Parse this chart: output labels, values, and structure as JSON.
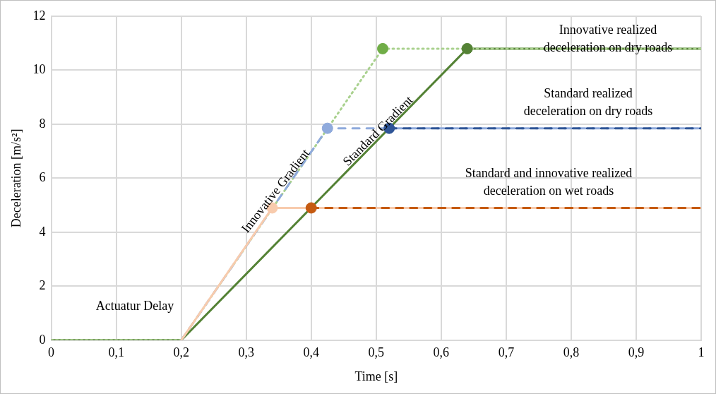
{
  "chart_data": {
    "type": "line",
    "xlabel": "Time [s]",
    "ylabel": "Deceleration [m/s²]",
    "xlim": [
      0,
      1
    ],
    "xticks": [
      0,
      {
        "value": 0.1,
        "label": "0,1"
      },
      {
        "value": 0.2,
        "label": "0,2"
      },
      {
        "value": 0.3,
        "label": "0,3"
      },
      {
        "value": 0.4,
        "label": "0,4"
      },
      {
        "value": 0.5,
        "label": "0,5"
      },
      {
        "value": 0.6,
        "label": "0,6"
      },
      {
        "value": 0.7,
        "label": "0,7"
      },
      {
        "value": 0.8,
        "label": "0,8"
      },
      {
        "value": 0.9,
        "label": "0,9"
      },
      1
    ],
    "ylim": [
      0,
      12
    ],
    "yticks": [
      0,
      2,
      4,
      6,
      8,
      10,
      12
    ],
    "grid": true,
    "legend": false,
    "series": [
      {
        "color": "#548235",
        "line_style": "solid",
        "marker": "none",
        "x": [
          0,
          0.2,
          0.64,
          1
        ],
        "values": [
          0,
          0,
          10.8,
          10.8
        ]
      },
      {
        "color": "#a9d18e",
        "line_style": "dotted",
        "marker": "none",
        "x": [
          0,
          0.2,
          0.51,
          1
        ],
        "values": [
          0,
          0,
          10.8,
          10.8
        ]
      },
      {
        "color": "#8faadc",
        "line_style": "dashed",
        "marker": "none",
        "x": [
          0.2,
          0.425,
          1
        ],
        "values": [
          0,
          7.85,
          7.85
        ]
      },
      {
        "color": "#2f5597",
        "line_style": "dashed",
        "marker": "none",
        "x": [
          0.52,
          1
        ],
        "values": [
          7.85,
          7.85
        ]
      },
      {
        "color": "#f8cbad",
        "line_style": "solid",
        "marker": "none",
        "x": [
          0.2,
          0.34,
          1
        ],
        "values": [
          0,
          4.9,
          4.9
        ]
      },
      {
        "color": "#c55a11",
        "line_style": "dashed",
        "marker": "none",
        "x": [
          0.4,
          1
        ],
        "values": [
          4.9,
          4.9
        ]
      },
      {
        "type": "scatter",
        "marker": "circle",
        "x": [
          0.51,
          0.64,
          0.425,
          0.52,
          0.34,
          0.4
        ],
        "values": [
          10.8,
          10.8,
          7.85,
          7.85,
          4.9,
          4.9
        ],
        "colors": [
          "#70ad47",
          "#548235",
          "#8faadc",
          "#2f5597",
          "#f8cbad",
          "#c55a11"
        ]
      }
    ],
    "annotations": [
      "Actuatur Delay",
      "Innovative Gradient",
      "Standard Gradient",
      "Innovative realized\ndeceleration on dry roads",
      "Standard realized\ndeceleration on dry roads",
      "Standard and innovative realized\ndeceleration on wet roads"
    ]
  }
}
